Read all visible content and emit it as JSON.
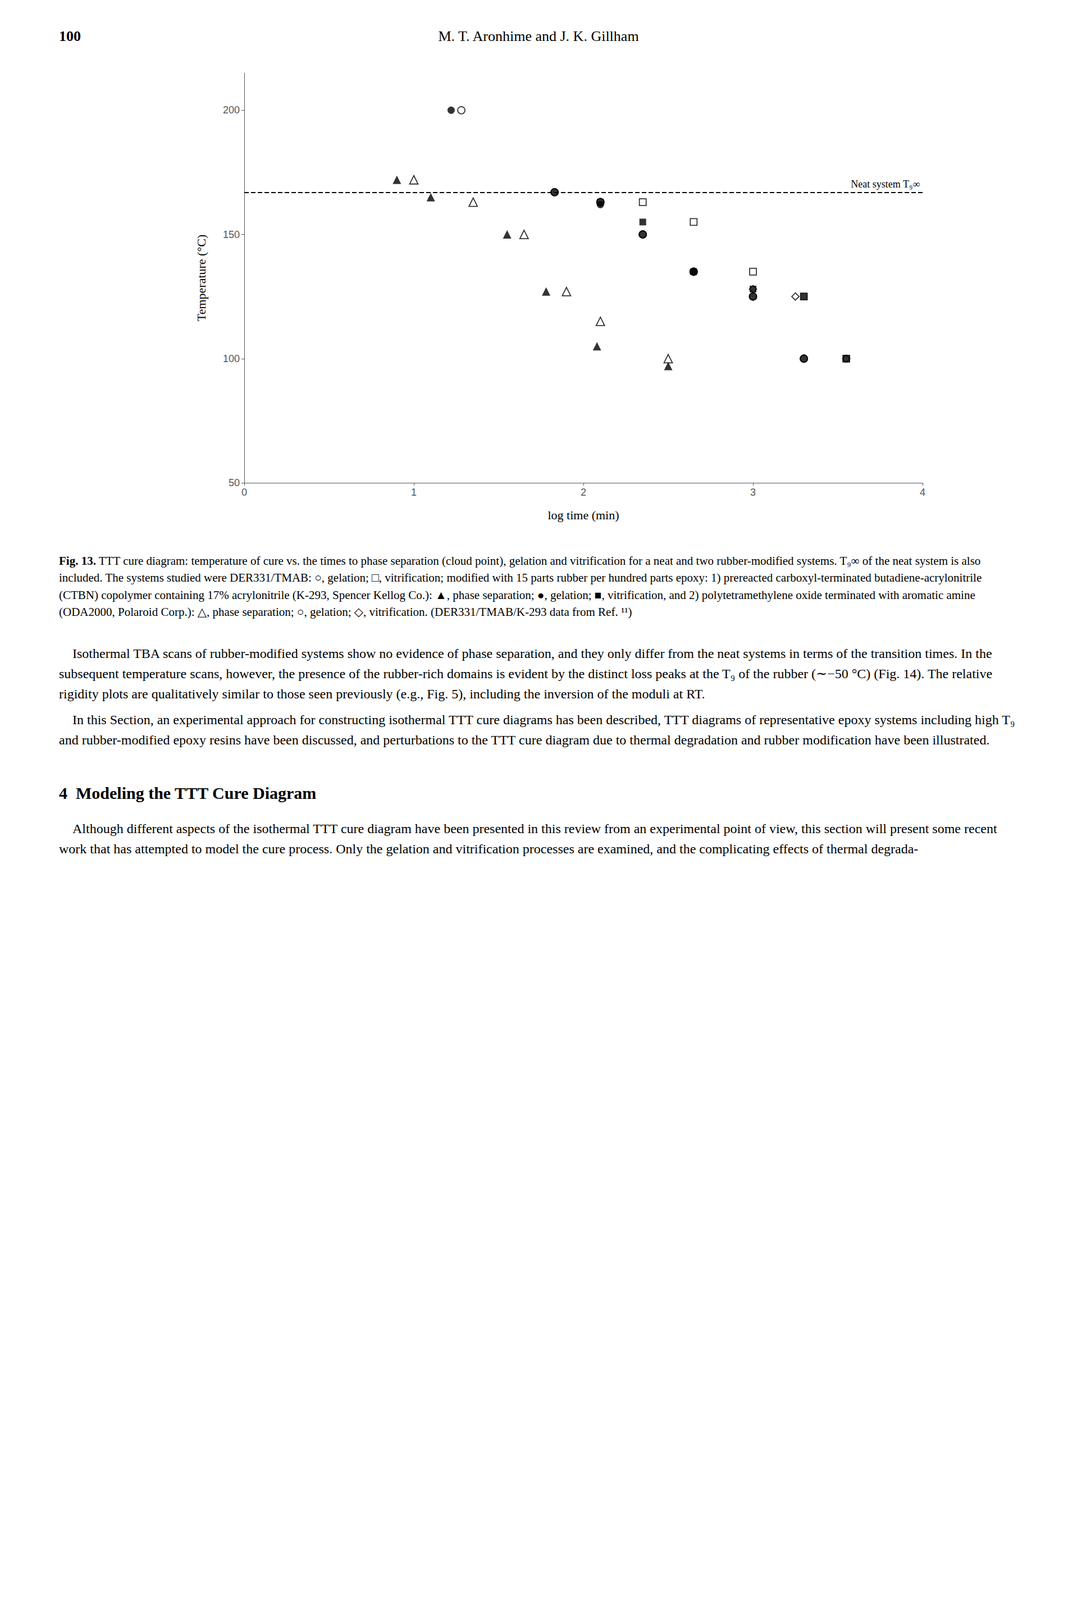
{
  "page_number": "100",
  "header": "M. T. Aronhime and J. K. Gillham",
  "caption_label": "Fig. 13.",
  "caption": " TTT cure diagram: temperature of cure vs. the times to phase separation (cloud point), gelation and vitrification for a neat and two rubber-modified systems. T₉∞ of the neat system is also included. The systems studied were DER331/TMAB: ○, gelation; □, vitrification; modified with 15 parts rubber per hundred parts epoxy: 1) prereacted carboxyl-terminated butadiene-acrylonitrile (CTBN) copolymer containing 17% acrylonitrile (K-293, Spencer Kellog Co.): ▲, phase separation; ●, gelation; ■, vitrification, and 2) polytetramethylene oxide terminated with aromatic amine (ODA2000, Polaroid Corp.): △, phase separation; ○, gelation; ◇, vitrification. (DER331/TMAB/K-293 data from Ref. ¹¹)",
  "body": [
    "    Isothermal TBA scans of rubber-modified systems show no evidence of phase separation, and they only differ from the neat systems in terms of the transition times. In the subsequent temperature scans, however, the presence of the rubber-rich domains is evident by the distinct loss peaks at the T₉ of the rubber (∼−50 °C) (Fig. 14). The relative rigidity plots are qualitatively similar to those seen previously (e.g., Fig. 5), including the inversion of the moduli at RT.",
    "    In this Section, an experimental approach for constructing isothermal TTT cure diagrams has been described, TTT diagrams of representative epoxy systems including high T₉ and rubber-modified epoxy resins have been discussed, and perturbations to the TTT cure diagram due to thermal degradation and rubber modification have been illustrated."
  ],
  "section_heading": "4  Modeling the TTT Cure Diagram",
  "section_body": "    Although different aspects of the isothermal TTT cure diagram have been presented in this review from an experimental point of view, this section will present some recent work that has attempted to model the cure process. Only the gelation and vitrification processes are examined, and the complicating effects of thermal degrada-",
  "chart_data": {
    "type": "scatter",
    "xlabel": "log time (min)",
    "ylabel": "Temperature (°C)",
    "xlim": [
      0,
      4
    ],
    "ylim": [
      50,
      215
    ],
    "xticks": [
      0,
      1,
      2,
      3,
      4
    ],
    "yticks": [
      50,
      100,
      150,
      200
    ],
    "grid": false,
    "hline": {
      "value": 167,
      "label": "Neat system T₉∞",
      "line_style": "dashed",
      "color": "#000000"
    },
    "series": [
      {
        "marker": "circle_open",
        "color": "#000000",
        "x": [
          1.83,
          2.1,
          2.35,
          2.65,
          3.0,
          3.3
        ],
        "values": [
          167,
          163,
          150,
          135,
          125,
          100
        ]
      },
      {
        "marker": "square_open",
        "color": "#000000",
        "x": [
          2.35,
          2.65,
          3.0,
          3.3,
          3.55
        ],
        "values": [
          163,
          155,
          135,
          125,
          100
        ]
      },
      {
        "marker": "triangle_filled",
        "color": "#000000",
        "x": [
          0.9,
          1.1,
          1.55,
          1.78,
          2.08,
          2.5
        ],
        "values": [
          172,
          165,
          150,
          127,
          105,
          97
        ]
      },
      {
        "marker": "circle_filled",
        "color": "#000000",
        "x": [
          1.22,
          1.83,
          2.1,
          2.35,
          2.65,
          3.0,
          3.3
        ],
        "values": [
          200,
          167,
          162,
          150,
          135,
          125,
          100
        ]
      },
      {
        "marker": "square_filled",
        "color": "#000000",
        "x": [
          2.1,
          2.35,
          2.65,
          3.0,
          3.3,
          3.55
        ],
        "values": [
          163,
          155,
          135,
          128,
          125,
          100
        ]
      },
      {
        "marker": "triangle_open",
        "color": "#000000",
        "x": [
          1.0,
          1.35,
          1.65,
          1.9,
          2.1,
          2.5
        ],
        "values": [
          172,
          163,
          150,
          127,
          115,
          100
        ]
      },
      {
        "marker": "circle_open",
        "color": "#000000",
        "x": [
          1.28,
          1.83,
          2.1,
          2.35,
          2.65,
          3.0,
          3.3
        ],
        "values": [
          200,
          167,
          163,
          150,
          135,
          125,
          100
        ]
      },
      {
        "marker": "diamond_open",
        "color": "#000000",
        "x": [
          2.65,
          3.0,
          3.25,
          3.55
        ],
        "values": [
          135,
          128,
          125,
          100
        ]
      }
    ]
  }
}
